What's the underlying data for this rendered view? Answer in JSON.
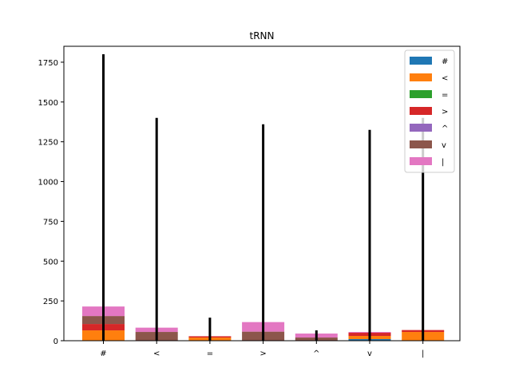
{
  "chart_data": {
    "type": "bar",
    "title": "tRNN",
    "xlabel": "",
    "ylabel": "",
    "categories": [
      "#",
      "<",
      "=",
      ">",
      "^",
      "v",
      "|"
    ],
    "ylim": [
      0,
      1850
    ],
    "yticks": [
      0,
      250,
      500,
      750,
      1000,
      1250,
      1500,
      1750
    ],
    "legend_position": "top-right",
    "series": [
      {
        "name": "#",
        "color": "#1f77b4",
        "values": [
          0,
          0,
          0,
          0,
          0,
          10,
          0
        ]
      },
      {
        "name": "<",
        "color": "#ff7f0e",
        "values": [
          65,
          0,
          20,
          0,
          0,
          20,
          55
        ]
      },
      {
        "name": "=",
        "color": "#2ca02c",
        "values": [
          0,
          0,
          0,
          0,
          0,
          0,
          0
        ]
      },
      {
        "name": ">",
        "color": "#d62728",
        "values": [
          40,
          0,
          8,
          0,
          0,
          20,
          12
        ]
      },
      {
        "name": "^",
        "color": "#9467bd",
        "values": [
          0,
          0,
          0,
          0,
          0,
          0,
          0
        ]
      },
      {
        "name": "v",
        "color": "#8c564b",
        "values": [
          50,
          55,
          0,
          57,
          20,
          0,
          0
        ]
      },
      {
        "name": "|",
        "color": "#e377c2",
        "values": [
          60,
          27,
          0,
          60,
          25,
          5,
          0
        ]
      }
    ],
    "totals": [
      1800,
      1400,
      145,
      1360,
      65,
      1325,
      1400
    ]
  }
}
